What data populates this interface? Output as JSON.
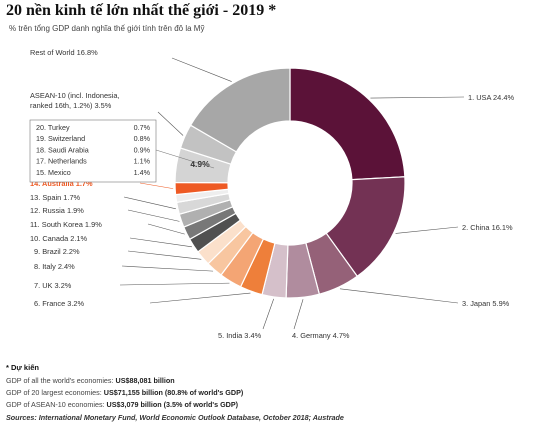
{
  "title": "20 nền kinh tế lớn nhất thế giới - 2019 *",
  "subtitle": "% trên tổng GDP danh nghĩa thế giới tính trên đô la Mỹ",
  "footnotes": {
    "heading": "* Dự kiến",
    "line1_label": "GDP of all the world's economies:",
    "line1_value": "US$88,081 billion",
    "line2_label": "GDP of 20 largest economies:",
    "line2_value": "US$71,155 billion (80.8% of world's GDP)",
    "line3_label": "GDP of ASEAN-10 economies:",
    "line3_value": "US$3,079 billion (3.5% of world's GDP)",
    "source": "Sources: International Monetary Fund, World Economic Outlook Database, October 2018; Austrade"
  },
  "colors": {
    "highlight": "#ee5a24",
    "text": "#333333",
    "leader": "#555555"
  },
  "chart_data": {
    "type": "pie",
    "donut": true,
    "slices": [
      {
        "label": "1. USA 24.4%",
        "value": 24.4,
        "color": "#5b1238"
      },
      {
        "label": "2. China 16.1%",
        "value": 16.1,
        "color": "#733254"
      },
      {
        "label": "3. Japan 5.9%",
        "value": 5.9,
        "color": "#956178"
      },
      {
        "label": "4. Germany 4.7%",
        "value": 4.7,
        "color": "#b08c9e"
      },
      {
        "label": "5. India 3.4%",
        "value": 3.4,
        "color": "#d5c0ca"
      },
      {
        "label": "6. France 3.2%",
        "value": 3.2,
        "color": "#ee7f3a"
      },
      {
        "label": "7. UK 3.2%",
        "value": 3.2,
        "color": "#f4a574"
      },
      {
        "label": "8. Italy 2.4%",
        "value": 2.4,
        "color": "#f8c6a0"
      },
      {
        "label": "9. Brazil 2.2%",
        "value": 2.2,
        "color": "#fbe0cb"
      },
      {
        "label": "10. Canada 2.1%",
        "value": 2.1,
        "color": "#505050"
      },
      {
        "label": "11. South Korea 1.9%",
        "value": 1.9,
        "color": "#787878"
      },
      {
        "label": "12. Russia 1.9%",
        "value": 1.9,
        "color": "#b0b0b0"
      },
      {
        "label": "13. Spain 1.7%",
        "value": 1.7,
        "color": "#d8d8d8"
      },
      {
        "label": "",
        "value": 1.1,
        "color": "#eeeeee"
      },
      {
        "label": "14. Australia 1.7%",
        "value": 1.7,
        "color": "#ee5a24",
        "highlight": true
      },
      {
        "label": "4.9%",
        "value": 4.9,
        "color": "#d4d4d4",
        "group": "others"
      },
      {
        "label": "ASEAN-10 (incl. Indonesia, ranked 16th, 1.2%) 3.5%",
        "value": 3.5,
        "color": "#c2c2c2"
      },
      {
        "label": "Rest of World 16.8%",
        "value": 16.8,
        "color": "#a7a7a7"
      }
    ],
    "others_box": [
      {
        "label": "20. Turkey",
        "value": "0.7%"
      },
      {
        "label": "19. Switzerland",
        "value": "0.8%"
      },
      {
        "label": "18. Saudi Arabia",
        "value": "0.9%"
      },
      {
        "label": "17. Netherlands",
        "value": "1.1%"
      },
      {
        "label": "15. Mexico",
        "value": "1.4%"
      }
    ]
  }
}
